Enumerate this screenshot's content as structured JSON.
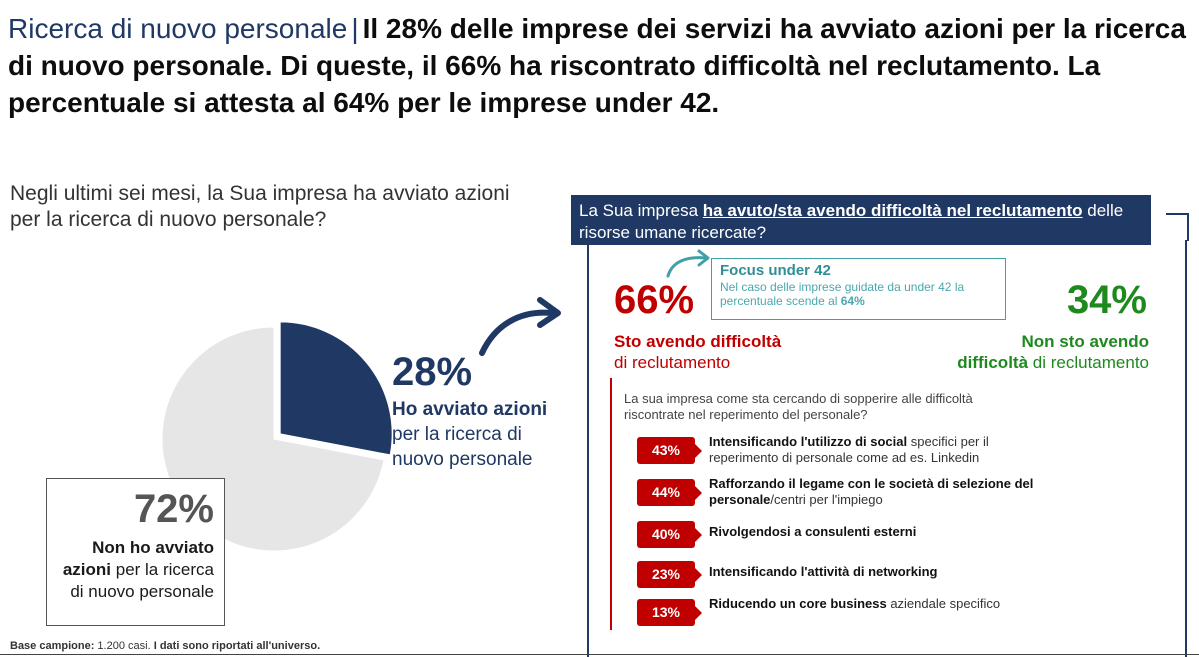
{
  "title": {
    "lead": "Ricerca di nuovo personale",
    "separator": "|",
    "text": "Il 28% delle imprese dei servizi ha avviato azioni per la ricerca di nuovo personale. Di queste, il 66% ha riscontrato difficoltà nel reclutamento. La percentuale si attesta al 64% per le imprese under 42."
  },
  "left": {
    "question": "Negli ultimi sei mesi, la Sua impresa ha avviato azioni per la ricerca di nuovo personale?",
    "pct_yes": "28%",
    "label_yes_bold": "Ho avviato azioni",
    "label_yes_rest": " per la ricerca di nuovo personale",
    "pct_no": "72%",
    "label_no_bold": "Non ho avviato azioni",
    "label_no_rest": " per la ricerca di nuovo personale"
  },
  "right": {
    "question_pre": "La Sua impresa ",
    "question_underline": "ha avuto/sta avendo difficoltà nel reclutamento",
    "question_post": " delle risorse umane ricercate?",
    "pct_yes": "66%",
    "label_yes_bold": "Sto avendo difficoltà",
    "label_yes_rest": "di reclutamento",
    "pct_no": "34%",
    "label_no_bold": "Non sto avendo difficoltà",
    "label_no_rest": " di reclutamento",
    "focus_title": "Focus under 42",
    "focus_text": "Nel caso delle imprese guidate da under 42 la percentuale scende al ",
    "focus_value": "64%",
    "sub_question": "La sua impresa come sta cercando di sopperire alle difficoltà riscontrate nel reperimento del personale?",
    "items": [
      {
        "pct": "43%",
        "bold": "Intensificando l'utilizzo di social",
        "rest": " specifici per il reperimento di personale come ad es. Linkedin"
      },
      {
        "pct": "44%",
        "bold": "Rafforzando il legame con le società di selezione del personale",
        "rest": "/centri per l'impiego"
      },
      {
        "pct": "40%",
        "bold": "Rivolgendosi a consulenti esterni",
        "rest": ""
      },
      {
        "pct": "23%",
        "bold": "Intensificando l'attività di networking",
        "rest": ""
      },
      {
        "pct": "13%",
        "bold": "Riducendo un core business",
        "rest": " aziendale specifico"
      }
    ]
  },
  "footnote": {
    "label": "Base campione:",
    "sample": " 1.200 casi. ",
    "note": "I dati sono riportati all'universo."
  },
  "colors": {
    "navy": "#1f3864",
    "light_grey": "#e6e6e6",
    "red": "#c00000",
    "green": "#1e8a1e",
    "teal": "#3fa0a8"
  },
  "chart_data": [
    {
      "type": "pie",
      "categories": [
        "Ho avviato azioni per la ricerca di nuovo personale",
        "Non ho avviato azioni per la ricerca di nuovo personale"
      ],
      "values": [
        28,
        72
      ],
      "colors": [
        "#1f3864",
        "#e6e6e6"
      ]
    },
    {
      "type": "bar",
      "categories": [
        "Intensificando l'utilizzo di social",
        "Rafforzando il legame con le società di selezione del personale",
        "Rivolgendosi a consulenti esterni",
        "Intensificando l'attività di networking",
        "Riducendo un core business"
      ],
      "values": [
        43,
        44,
        40,
        23,
        13
      ]
    }
  ]
}
